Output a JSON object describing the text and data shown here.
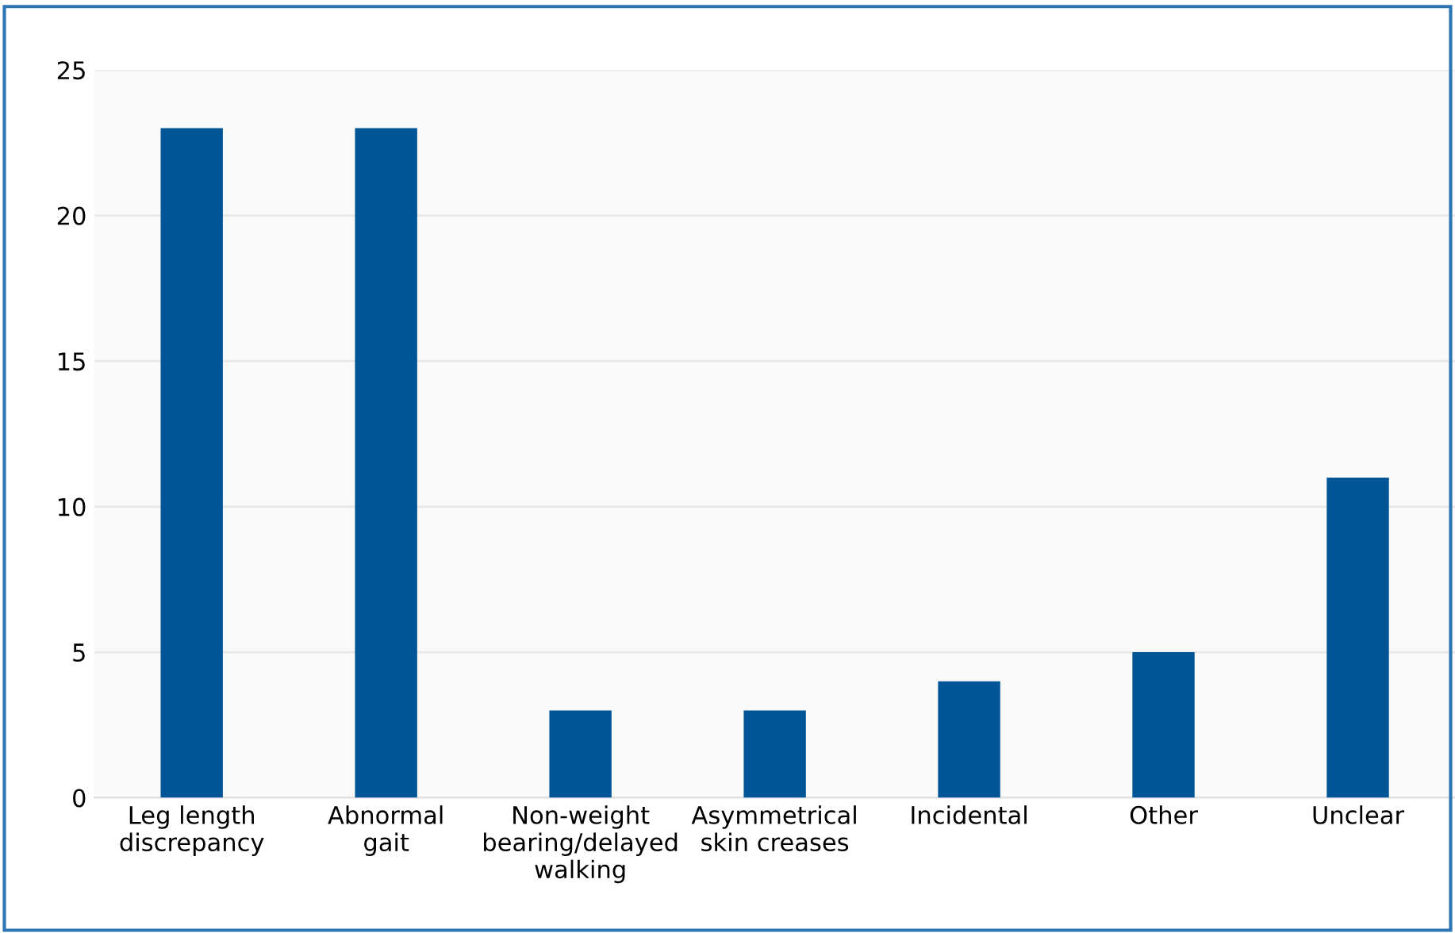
{
  "chart_data": {
    "type": "bar",
    "categories": [
      "Leg length\ndiscrepancy",
      "Abnormal\ngait",
      "Non-weight\nbearing/delayed\nwalking",
      "Asymmetrical\nskin creases",
      "Incidental",
      "Other",
      "Unclear"
    ],
    "values": [
      23,
      23,
      3,
      3,
      4,
      5,
      11
    ],
    "color": "#005596",
    "ylim": [
      0,
      25
    ],
    "yticks": [
      0,
      5,
      10,
      15,
      20,
      25
    ],
    "grid": "y"
  }
}
